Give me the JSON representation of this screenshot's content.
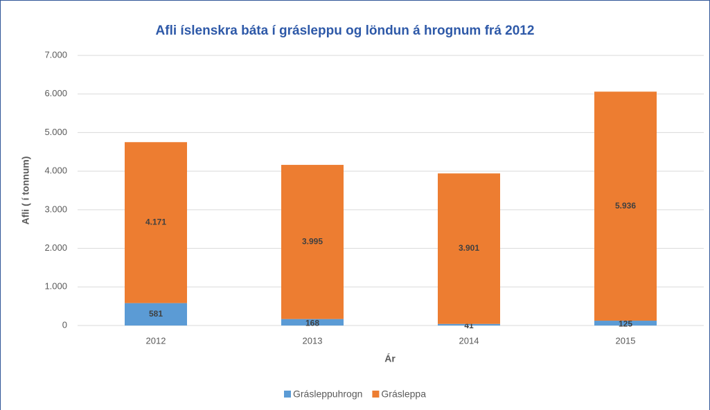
{
  "chart_data": {
    "type": "stacked_bar",
    "title": "Afli íslenskra báta í grásleppu og löndun á hrognum frá 2012",
    "x_label": "Ár",
    "y_label": "Afli ( í tonnum)",
    "categories": [
      "2012",
      "2013",
      "2014",
      "2015"
    ],
    "series": [
      {
        "name": "Grásleppuhrogn",
        "color": "#5b9bd5",
        "values": [
          581,
          168,
          41,
          125
        ]
      },
      {
        "name": "Grásleppa",
        "color": "#ed7d31",
        "values": [
          4171,
          3995,
          3901,
          5936
        ],
        "value_labels": [
          "4.171",
          "3.995",
          "3.901",
          "5.936"
        ]
      }
    ],
    "ylim": [
      0,
      7000
    ],
    "yticks": [
      {
        "value": 0,
        "label": "0"
      },
      {
        "value": 1000,
        "label": "1.000"
      },
      {
        "value": 2000,
        "label": "2.000"
      },
      {
        "value": 3000,
        "label": "3.000"
      },
      {
        "value": 4000,
        "label": "4.000"
      },
      {
        "value": 5000,
        "label": "5.000"
      },
      {
        "value": 6000,
        "label": "6.000"
      },
      {
        "value": 7000,
        "label": "7.000"
      }
    ],
    "grid": true,
    "legend": "bottom"
  }
}
